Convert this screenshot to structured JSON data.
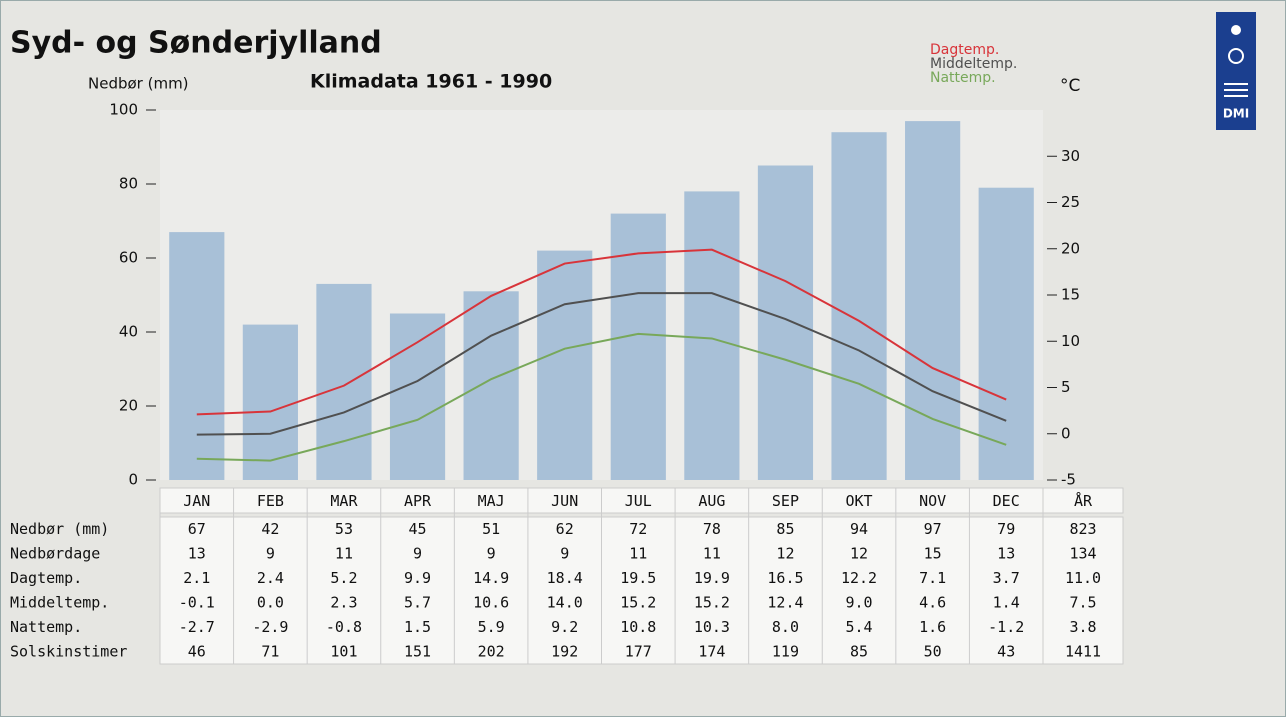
{
  "chart_data": {
    "type": "bar_line",
    "title": "Syd- og Sønderjylland",
    "subtitle": "Klimadata 1961 - 1990",
    "ylabel": "Nedbør (mm)",
    "y2label": "°C",
    "logo_text": "DMI",
    "categories": [
      "JAN",
      "FEB",
      "MAR",
      "APR",
      "MAJ",
      "JUN",
      "JUL",
      "AUG",
      "SEP",
      "OKT",
      "NOV",
      "DEC"
    ],
    "total_header": "ÅR",
    "ylim": [
      0,
      100
    ],
    "yticks": [
      0,
      20,
      40,
      60,
      80,
      100
    ],
    "y2lim": [
      -5,
      35
    ],
    "y2ticks": [
      -5,
      0,
      5,
      10,
      15,
      20,
      25,
      30
    ],
    "legend": "top-right",
    "series": [
      {
        "name": "Nedbør (mm)",
        "kind": "bar",
        "color": "#a8c0d7",
        "values": [
          67,
          42,
          53,
          45,
          51,
          62,
          72,
          78,
          85,
          94,
          97,
          79
        ],
        "total": "823"
      },
      {
        "name": "Dagtemp.",
        "kind": "line",
        "axis": "y2",
        "color": "#d8343a",
        "values": [
          2.1,
          2.4,
          5.2,
          9.9,
          14.9,
          18.4,
          19.5,
          19.9,
          16.5,
          12.2,
          7.1,
          3.7
        ],
        "value_labels": [
          "2.1",
          "2.4",
          "5.2",
          "9.9",
          "14.9",
          "18.4",
          "19.5",
          "19.9",
          "16.5",
          "12.2",
          "7.1",
          "3.7"
        ],
        "total": "11.0"
      },
      {
        "name": "Middeltemp.",
        "kind": "line",
        "axis": "y2",
        "color": "#505050",
        "values": [
          -0.1,
          0,
          2.3,
          5.7,
          10.6,
          14,
          15.2,
          15.2,
          12.4,
          9,
          4.6,
          1.4
        ],
        "value_labels": [
          "-0.1",
          "0.0",
          "2.3",
          "5.7",
          "10.6",
          "14.0",
          "15.2",
          "15.2",
          "12.4",
          "9.0",
          "4.6",
          "1.4"
        ],
        "total": "7.5"
      },
      {
        "name": "Nattemp.",
        "kind": "line",
        "axis": "y2",
        "color": "#78a85a",
        "values": [
          -2.7,
          -2.9,
          -0.8,
          1.5,
          5.9,
          9.2,
          10.8,
          10.3,
          8,
          5.4,
          1.6,
          -1.2
        ],
        "value_labels": [
          "-2.7",
          "-2.9",
          "-0.8",
          "1.5",
          "5.9",
          "9.2",
          "10.8",
          "10.3",
          "8.0",
          "5.4",
          "1.6",
          "-1.2"
        ],
        "total": "3.8"
      }
    ],
    "table_rows": [
      {
        "name": "Nedbørdage",
        "values": [
          13,
          9,
          11,
          9,
          9,
          9,
          11,
          11,
          12,
          12,
          15,
          13
        ],
        "total": "134"
      },
      {
        "name": "Solskinstimer",
        "values": [
          46,
          71,
          101,
          151,
          202,
          192,
          177,
          174,
          119,
          85,
          50,
          43
        ],
        "total": "1411"
      }
    ]
  }
}
